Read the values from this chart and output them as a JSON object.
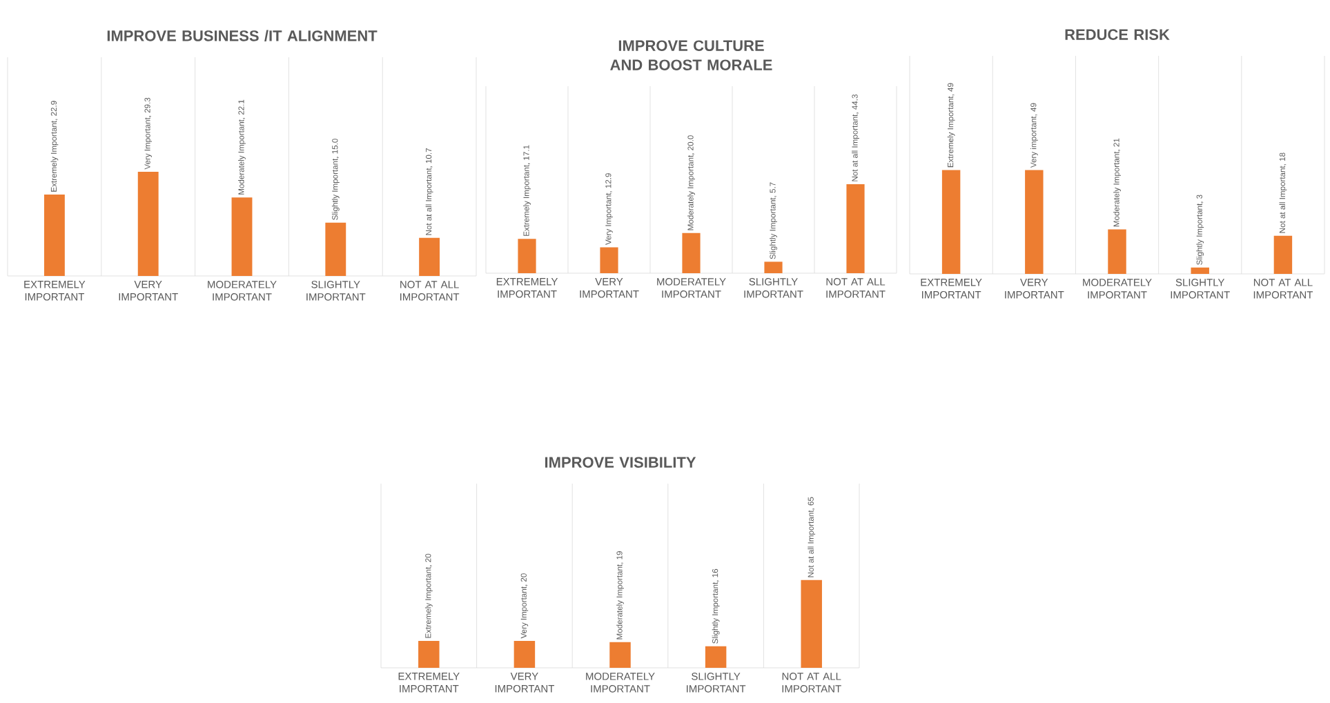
{
  "chart_data": [
    {
      "type": "bar",
      "title": "IMPROVE BUSINESS /IT ALIGNMENT",
      "categories": [
        "EXTREMELY IMPORTANT",
        "VERY IMPORTANT",
        "MODERATELY IMPORTANT",
        "SLIGHTLY IMPORTANT",
        "NOT AT ALL IMPORTANT"
      ],
      "values": [
        22.9,
        29.3,
        22.1,
        15.0,
        10.7
      ],
      "color": "#ed7d31",
      "grid": "x",
      "value_labels": [
        "Extremely Important, 22.9",
        "Very Important, 29.3",
        "Moderately Important, 22.1",
        "Slightly Important, 15.0",
        "Not at all Important, 10.7"
      ]
    },
    {
      "type": "bar",
      "title": "IMPROVE CULTURE AND BOOST MORALE",
      "categories": [
        "EXTREMELY IMPORTANT",
        "VERY IMPORTANT",
        "MODERATELY IMPORTANT",
        "SLIGHTLY IMPORTANT",
        "NOT AT ALL IMPORTANT"
      ],
      "values": [
        17.1,
        12.9,
        20.0,
        5.7,
        44.3
      ],
      "color": "#ed7d31",
      "grid": "x",
      "value_labels": [
        "Extremely Important, 17.1",
        "Very Important, 12.9",
        "Moderately Important, 20.0",
        "Slightly Important, 5.7",
        "Not at all Important, 44.3"
      ]
    },
    {
      "type": "bar",
      "title": "REDUCE RISK",
      "categories": [
        "EXTREMELY IMPORTANT",
        "VERY IMPORTANT",
        "MODERATELY IMPORTANT",
        "SLIGHTLY IMPORTANT",
        "NOT AT ALL IMPORTANT"
      ],
      "values": [
        49,
        49,
        21,
        3,
        18
      ],
      "color": "#ed7d31",
      "grid": "x",
      "value_labels": [
        "Extremely Important, 49",
        "Very important, 49",
        "Moderately Important, 21",
        "Slightly Important, 3",
        "Not at all Important, 18"
      ]
    },
    {
      "type": "bar",
      "title": "IMPROVE VISIBILITY",
      "categories": [
        "EXTREMELY IMPORTANT",
        "VERY IMPORTANT",
        "MODERATELY IMPORTANT",
        "SLIGHTLY IMPORTANT",
        "NOT AT ALL IMPORTANT"
      ],
      "values": [
        20,
        20,
        19,
        16,
        65
      ],
      "color": "#ed7d31",
      "grid": "x",
      "value_labels": [
        "Extremely Important, 20",
        "Very Important, 20",
        "Moderately Important, 19",
        "Slightly Important, 16",
        "Not at all Important, 65"
      ]
    }
  ]
}
